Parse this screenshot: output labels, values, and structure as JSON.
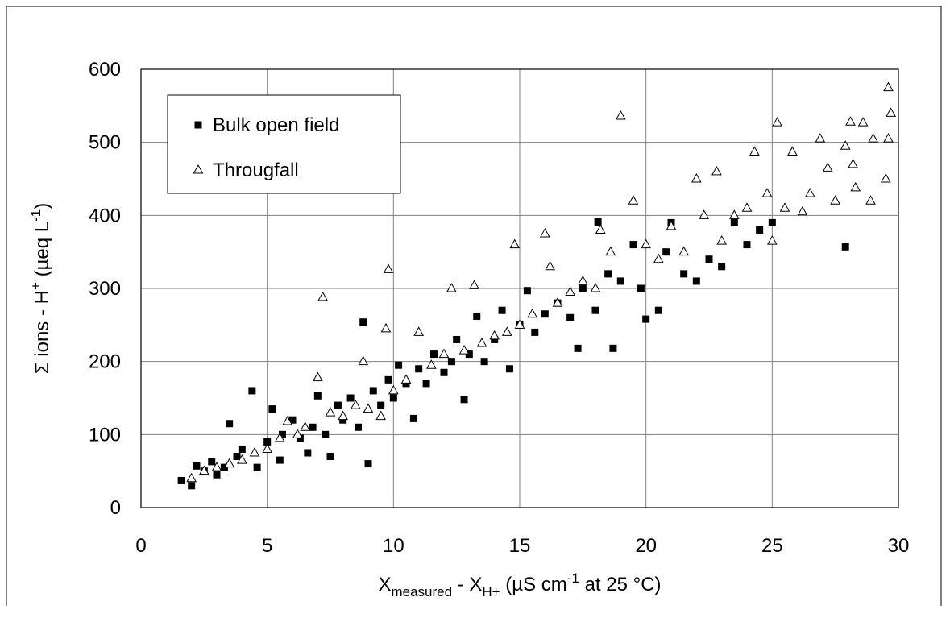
{
  "chart_data": {
    "type": "scatter",
    "x_label": [
      "X",
      "measured",
      " - X",
      "H+",
      " (µS cm",
      "-1",
      " at 25 °C)"
    ],
    "y_label": [
      "Σ ions - H",
      "+",
      " (µeq L",
      "-1",
      ")"
    ],
    "xlim": [
      0,
      30
    ],
    "xticks": [
      0,
      5,
      10,
      15,
      20,
      25,
      30
    ],
    "ylim": [
      0,
      600
    ],
    "yticks": [
      0,
      100,
      200,
      300,
      400,
      500,
      600
    ],
    "grid": true,
    "legend": "upper left",
    "series": [
      {
        "name": "Bulk open field",
        "color": "#000000",
        "marker": "square",
        "x": [
          1.6,
          2.0,
          2.2,
          2.5,
          2.8,
          3.0,
          3.3,
          3.5,
          3.8,
          4.0,
          4.4,
          4.6,
          5.0,
          5.2,
          5.5,
          5.6,
          6.0,
          6.3,
          6.6,
          6.8,
          7.0,
          7.3,
          7.5,
          7.8,
          8.0,
          8.3,
          8.6,
          8.8,
          9.0,
          9.2,
          9.5,
          9.8,
          10.0,
          10.2,
          10.5,
          10.8,
          11.0,
          11.3,
          11.6,
          12.0,
          12.3,
          12.5,
          12.8,
          13.0,
          13.3,
          13.6,
          14.0,
          14.3,
          14.6,
          15.0,
          15.3,
          15.6,
          16.0,
          16.5,
          17.0,
          17.3,
          17.5,
          18.0,
          18.1,
          18.5,
          18.7,
          19.0,
          19.5,
          19.8,
          20.0,
          20.5,
          20.8,
          21.0,
          21.5,
          22.0,
          22.5,
          23.0,
          23.5,
          24.0,
          24.5,
          25.0,
          27.9
        ],
        "values": [
          37,
          30,
          57,
          50,
          63,
          45,
          55,
          115,
          70,
          80,
          160,
          55,
          90,
          135,
          65,
          100,
          120,
          95,
          75,
          110,
          153,
          100,
          70,
          140,
          120,
          150,
          110,
          254,
          60,
          160,
          140,
          175,
          150,
          195,
          170,
          122,
          190,
          170,
          210,
          185,
          200,
          230,
          148,
          210,
          262,
          200,
          230,
          270,
          190,
          250,
          297,
          240,
          265,
          280,
          260,
          218,
          300,
          270,
          391,
          320,
          218,
          310,
          360,
          300,
          258,
          270,
          350,
          390,
          320,
          310,
          340,
          330,
          390,
          360,
          380,
          390,
          357
        ]
      },
      {
        "name": "Througfall",
        "color": "#000000",
        "marker": "triangle",
        "x": [
          2.0,
          2.5,
          3.0,
          3.5,
          4.0,
          4.5,
          5.0,
          5.5,
          5.8,
          6.2,
          6.5,
          7.0,
          7.2,
          7.5,
          8.0,
          8.5,
          8.8,
          9.0,
          9.5,
          9.7,
          9.8,
          10.0,
          10.5,
          11.0,
          11.5,
          12.0,
          12.3,
          12.8,
          13.2,
          13.5,
          14.0,
          14.5,
          14.8,
          15.0,
          15.5,
          16.0,
          16.2,
          16.5,
          17.0,
          17.5,
          18.0,
          18.2,
          18.6,
          19.0,
          19.5,
          20.0,
          20.5,
          21.0,
          21.5,
          22.0,
          22.3,
          22.8,
          23.0,
          23.5,
          24.0,
          24.3,
          24.8,
          25.0,
          25.2,
          25.5,
          25.8,
          26.2,
          26.5,
          26.9,
          27.2,
          27.5,
          27.9,
          28.1,
          28.3,
          28.6,
          28.9,
          29.0,
          29.5,
          29.6,
          29.7,
          29.6,
          28.2
        ],
        "values": [
          40,
          50,
          55,
          60,
          65,
          75,
          80,
          95,
          118,
          100,
          110,
          178,
          288,
          130,
          125,
          140,
          200,
          135,
          125,
          245,
          326,
          160,
          175,
          240,
          195,
          210,
          300,
          215,
          304,
          225,
          235,
          240,
          360,
          250,
          265,
          375,
          330,
          280,
          295,
          310,
          300,
          380,
          350,
          536,
          420,
          360,
          340,
          385,
          350,
          450,
          400,
          460,
          365,
          400,
          410,
          487,
          430,
          365,
          527,
          410,
          487,
          405,
          430,
          505,
          465,
          420,
          495,
          528,
          438,
          527,
          420,
          505,
          450,
          575,
          540,
          505,
          470
        ]
      }
    ]
  }
}
